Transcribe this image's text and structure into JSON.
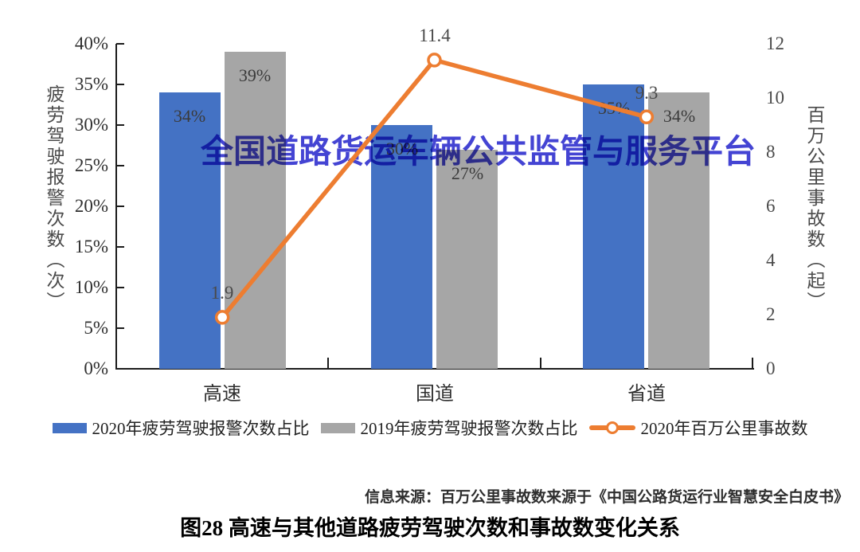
{
  "watermark": "全国道路货运车辆公共监管与服务平台",
  "source_note": "信息来源：百万公里事故数来源于《中国公路货运行业智慧安全白皮书》",
  "figure_title": "图28 高速与其他道路疲劳驾驶次数和事故数变化关系",
  "colors": {
    "bar_2020": "#4472C4",
    "bar_2019": "#A6A6A6",
    "line_2020": "#ED7D31",
    "watermark": "#3434D0",
    "axis": "#1C1C1C",
    "label_text": "#3B3B3B"
  },
  "chart_data": {
    "type": "bar+line combo, dual y-axes",
    "categories": [
      "高速",
      "国道",
      "省道"
    ],
    "series": [
      {
        "name": "2020年疲劳驾驶报警次数占比",
        "type": "bar",
        "axis": "left",
        "values": [
          34,
          30,
          35
        ],
        "labels": [
          "34%",
          "30%",
          "35%"
        ],
        "color": "#4472C4"
      },
      {
        "name": "2019年疲劳驾驶报警次数占比",
        "type": "bar",
        "axis": "left",
        "values": [
          39,
          27,
          34
        ],
        "labels": [
          "39%",
          "27%",
          "34%"
        ],
        "color": "#A6A6A6"
      },
      {
        "name": "2020年百万公里事故数",
        "type": "line",
        "axis": "right",
        "values": [
          1.9,
          11.4,
          9.3
        ],
        "labels": [
          "1.9",
          "11.4",
          "9.3"
        ],
        "color": "#ED7D31"
      }
    ],
    "left_axis": {
      "label": "疲劳驾驶报警次数（次）",
      "min": 0,
      "max": 40,
      "unit": "%",
      "ticks": [
        "0%",
        "5%",
        "10%",
        "15%",
        "20%",
        "25%",
        "30%",
        "35%",
        "40%"
      ]
    },
    "right_axis": {
      "label": "百万公里事故数（起）",
      "min": 0,
      "max": 12,
      "ticks": [
        "0",
        "2",
        "4",
        "6",
        "8",
        "10",
        "12"
      ]
    },
    "legend_position": "bottom",
    "grid": false
  }
}
